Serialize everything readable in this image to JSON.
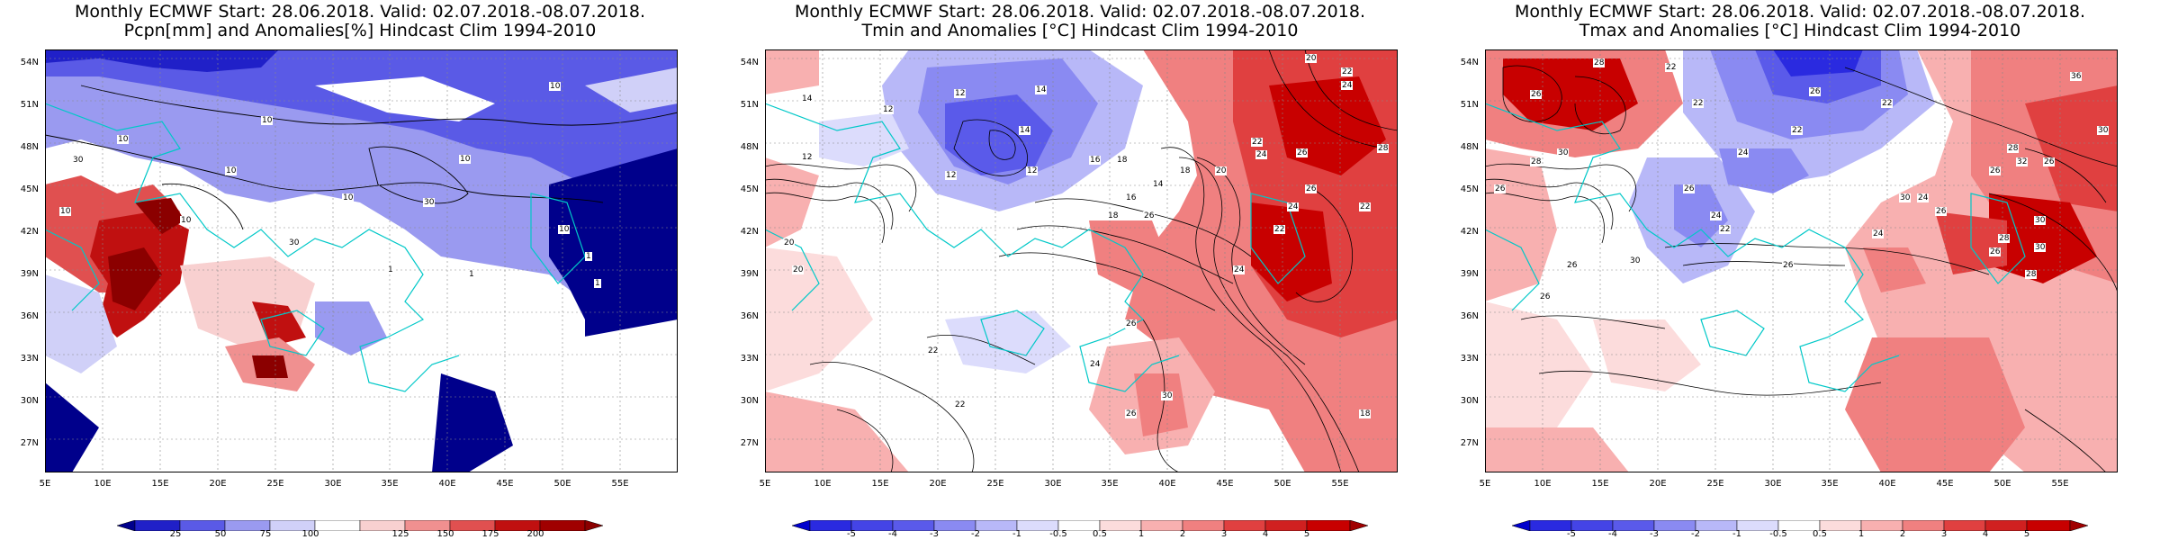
{
  "panels": [
    {
      "title_line1": "Monthly ECMWF Start: 28.06.2018. Valid: 02.07.2018.-08.07.2018.",
      "title_line2": "Pcpn[mm] and Anomalies[%] Hindcast Clim 1994-2010",
      "colorbar_labels": [
        "25",
        "50",
        "75",
        "100",
        "125",
        "150",
        "175",
        "200"
      ],
      "contour_labels": [
        "10",
        "10",
        "10",
        "10",
        "10",
        "10",
        "10",
        "10",
        "30",
        "30",
        "30",
        "10",
        "1",
        "1",
        "1",
        "1"
      ],
      "colors": [
        "#00008b",
        "#2020c8",
        "#5a5ae6",
        "#9a9af0",
        "#d0d0f8",
        "#ffffff",
        "#f8d0d0",
        "#f09090",
        "#e05050",
        "#c01010",
        "#8b0000"
      ]
    },
    {
      "title_line1": "Monthly ECMWF Start: 28.06.2018. Valid: 02.07.2018.-08.07.2018.",
      "title_line2": "Tmin and Anomalies [°C] Hindcast Clim 1994-2010",
      "colorbar_labels": [
        "-5",
        "-4",
        "-3",
        "-2",
        "-1",
        "-0.5",
        "0.5",
        "1",
        "2",
        "3",
        "4",
        "5"
      ],
      "contour_labels": [
        "14",
        "12",
        "12",
        "14",
        "14",
        "12",
        "12",
        "16",
        "18",
        "20",
        "22",
        "24",
        "22",
        "24",
        "26",
        "20",
        "18",
        "14",
        "12",
        "22",
        "24",
        "26",
        "28",
        "22",
        "20",
        "16",
        "18",
        "26",
        "24",
        "30",
        "26",
        "22",
        "20",
        "22",
        "24",
        "26",
        "18"
      ],
      "colors": [
        "#0000cd",
        "#2a2ae0",
        "#5a5aea",
        "#8a8af2",
        "#b8b8f8",
        "#dcdcfc",
        "#ffffff",
        "#fcdcdc",
        "#f8b0b0",
        "#f08080",
        "#e04040",
        "#c80000"
      ]
    },
    {
      "title_line1": "Monthly ECMWF Start: 28.06.2018. Valid: 02.07.2018.-08.07.2018.",
      "title_line2": "Tmax and Anomalies [°C] Hindcast Clim 1994-2010",
      "colorbar_labels": [
        "-5",
        "-4",
        "-3",
        "-2",
        "-1",
        "-0.5",
        "0.5",
        "1",
        "2",
        "3",
        "4",
        "5"
      ],
      "contour_labels": [
        "26",
        "22",
        "22",
        "26",
        "22",
        "28",
        "24",
        "26",
        "30",
        "28",
        "26",
        "24",
        "22",
        "30",
        "26",
        "28",
        "30",
        "32",
        "26",
        "24",
        "26",
        "28",
        "30",
        "36",
        "30",
        "26",
        "30",
        "28",
        "26",
        "26",
        "26",
        "22",
        "24"
      ],
      "colors": [
        "#0000cd",
        "#2a2ae0",
        "#5a5aea",
        "#8a8af2",
        "#b8b8f8",
        "#dcdcfc",
        "#ffffff",
        "#fcdcdc",
        "#f8b0b0",
        "#f08080",
        "#e04040",
        "#c80000"
      ]
    }
  ],
  "lat_labels": [
    "54N",
    "51N",
    "48N",
    "45N",
    "42N",
    "39N",
    "36N",
    "33N",
    "30N",
    "27N"
  ],
  "lon_labels": [
    "5E",
    "10E",
    "15E",
    "20E",
    "25E",
    "30E",
    "35E",
    "40E",
    "45E",
    "50E",
    "55E"
  ]
}
